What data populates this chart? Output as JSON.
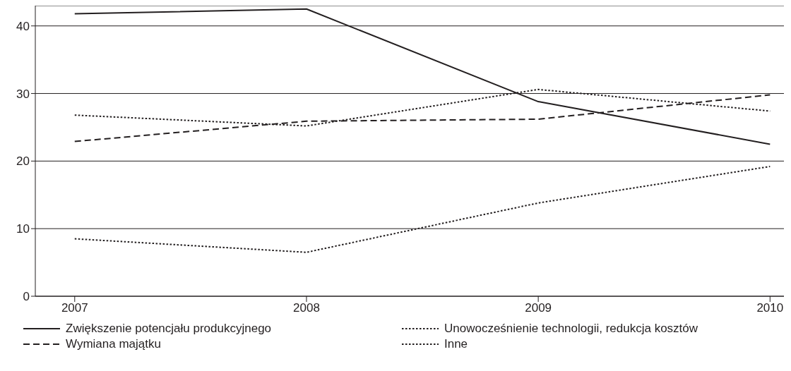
{
  "chart_data": {
    "type": "line",
    "x": [
      2007,
      2008,
      2009,
      2010
    ],
    "xlim": [
      2006.83,
      2010.06
    ],
    "xticks": [
      2007,
      2008,
      2009,
      2010
    ],
    "ylim": [
      0,
      43
    ],
    "yticks": [
      0,
      10,
      20,
      30,
      40
    ],
    "grid": "y",
    "legend": "bottom",
    "marker": "none",
    "series": [
      {
        "name": "Zwiększenie potencjału produkcyjnego",
        "color": "#231f20",
        "line_style": "solid",
        "values": [
          41.8,
          42.5,
          28.8,
          22.5
        ]
      },
      {
        "name": "Wymiana majątku",
        "color": "#231f20",
        "line_style": "dashed",
        "values": [
          22.9,
          25.9,
          26.2,
          29.8
        ]
      },
      {
        "name": "Unowocześnienie technologii, redukcja kosztów",
        "color": "#231f20",
        "line_style": "dotted",
        "values": [
          26.8,
          25.2,
          30.6,
          27.4
        ]
      },
      {
        "name": "Inne",
        "color": "#231f20",
        "line_style": "dotted",
        "values": [
          8.5,
          6.5,
          13.8,
          19.2
        ]
      }
    ]
  }
}
